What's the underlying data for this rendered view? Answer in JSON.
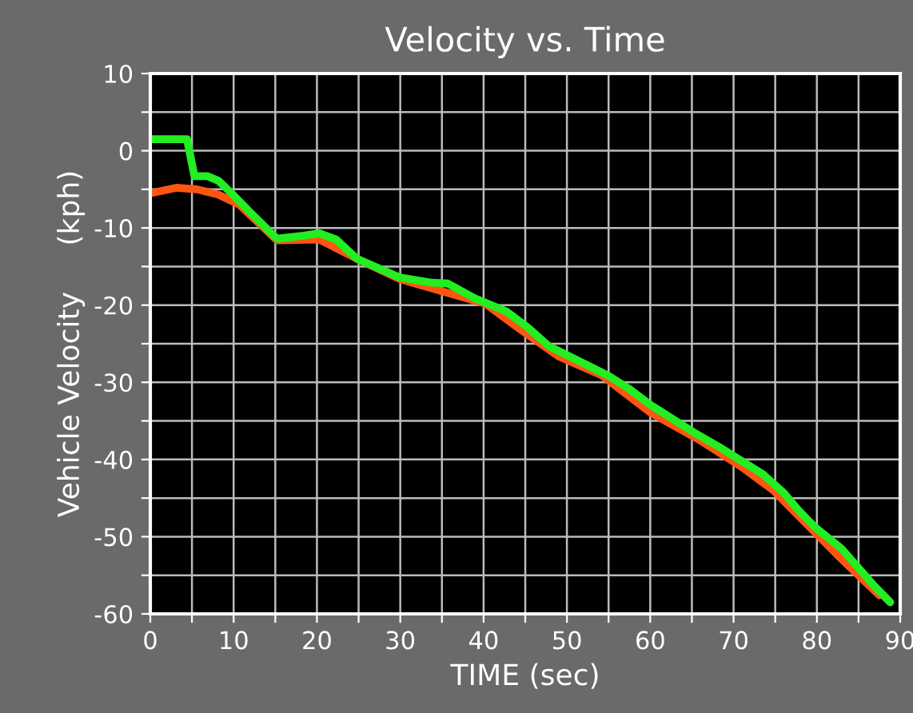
{
  "chart_data": {
    "type": "line",
    "title": "Velocity vs. Time",
    "xlabel": "TIME (sec)",
    "ylabel": "Vehicle Velocity     (kph)",
    "xlim": [
      0,
      90
    ],
    "ylim": [
      -60,
      10
    ],
    "xticks": [
      0,
      {
        "value": 5,
        "label": null
      },
      10,
      {
        "value": 15,
        "label": null
      },
      20,
      {
        "value": 25,
        "label": null
      },
      30,
      {
        "value": 35,
        "label": null
      },
      40,
      {
        "value": 45,
        "label": null
      },
      50,
      {
        "value": 55,
        "label": null
      },
      60,
      {
        "value": 65,
        "label": null
      },
      70,
      {
        "value": 75,
        "label": null
      },
      80,
      {
        "value": 85,
        "label": null
      },
      90
    ],
    "yticks": [
      -60,
      {
        "value": -55,
        "label": null
      },
      -50,
      {
        "value": -45,
        "label": null
      },
      -40,
      {
        "value": -35,
        "label": null
      },
      -30,
      {
        "value": -25,
        "label": null
      },
      -20,
      {
        "value": -15,
        "label": null
      },
      -10,
      {
        "value": -5,
        "label": null
      },
      0,
      {
        "value": 5,
        "label": null
      },
      10
    ],
    "grid": true,
    "legend": false,
    "marker": "none",
    "line_style": "solid",
    "series": [
      {
        "color": "#ff5511",
        "x": [
          0,
          3.1,
          5.6,
          8.2,
          10.7,
          15.2,
          20.3,
          24.8,
          29.9,
          35,
          40.2,
          44.6,
          49.1,
          54.2,
          60,
          65.8,
          70.9,
          74.8,
          77.9,
          82.4,
          87.5
        ],
        "values": [
          -5.5,
          -4.8,
          -5,
          -5.7,
          -7,
          -11.6,
          -11.5,
          -14,
          -16.6,
          -18.2,
          -19.8,
          -23.3,
          -26.7,
          -29.1,
          -33.9,
          -37.4,
          -40.9,
          -44,
          -47.4,
          -52.3,
          -57.6
        ]
      },
      {
        "color": "#22ee22",
        "x": [
          0,
          4.4,
          5.3,
          6.9,
          8.2,
          10.1,
          12,
          15.2,
          18.4,
          20.3,
          22.3,
          24.8,
          29.9,
          33.8,
          35.7,
          38.9,
          42.7,
          45.3,
          47.8,
          52.3,
          54.9,
          57.4,
          60,
          65.1,
          68.3,
          73.5,
          76,
          77.9,
          79.8,
          83,
          86.9,
          88.8
        ],
        "values": [
          1.5,
          1.5,
          -3.3,
          -3.3,
          -3.9,
          -5.9,
          -8,
          -11.4,
          -11,
          -10.7,
          -11.5,
          -14,
          -16.4,
          -17.1,
          -17.2,
          -19.1,
          -20.8,
          -22.9,
          -25.3,
          -27.7,
          -29.1,
          -30.8,
          -32.9,
          -36.4,
          -38.4,
          -41.9,
          -44.3,
          -46.7,
          -48.8,
          -51.6,
          -56.4,
          -58.5
        ]
      }
    ]
  }
}
